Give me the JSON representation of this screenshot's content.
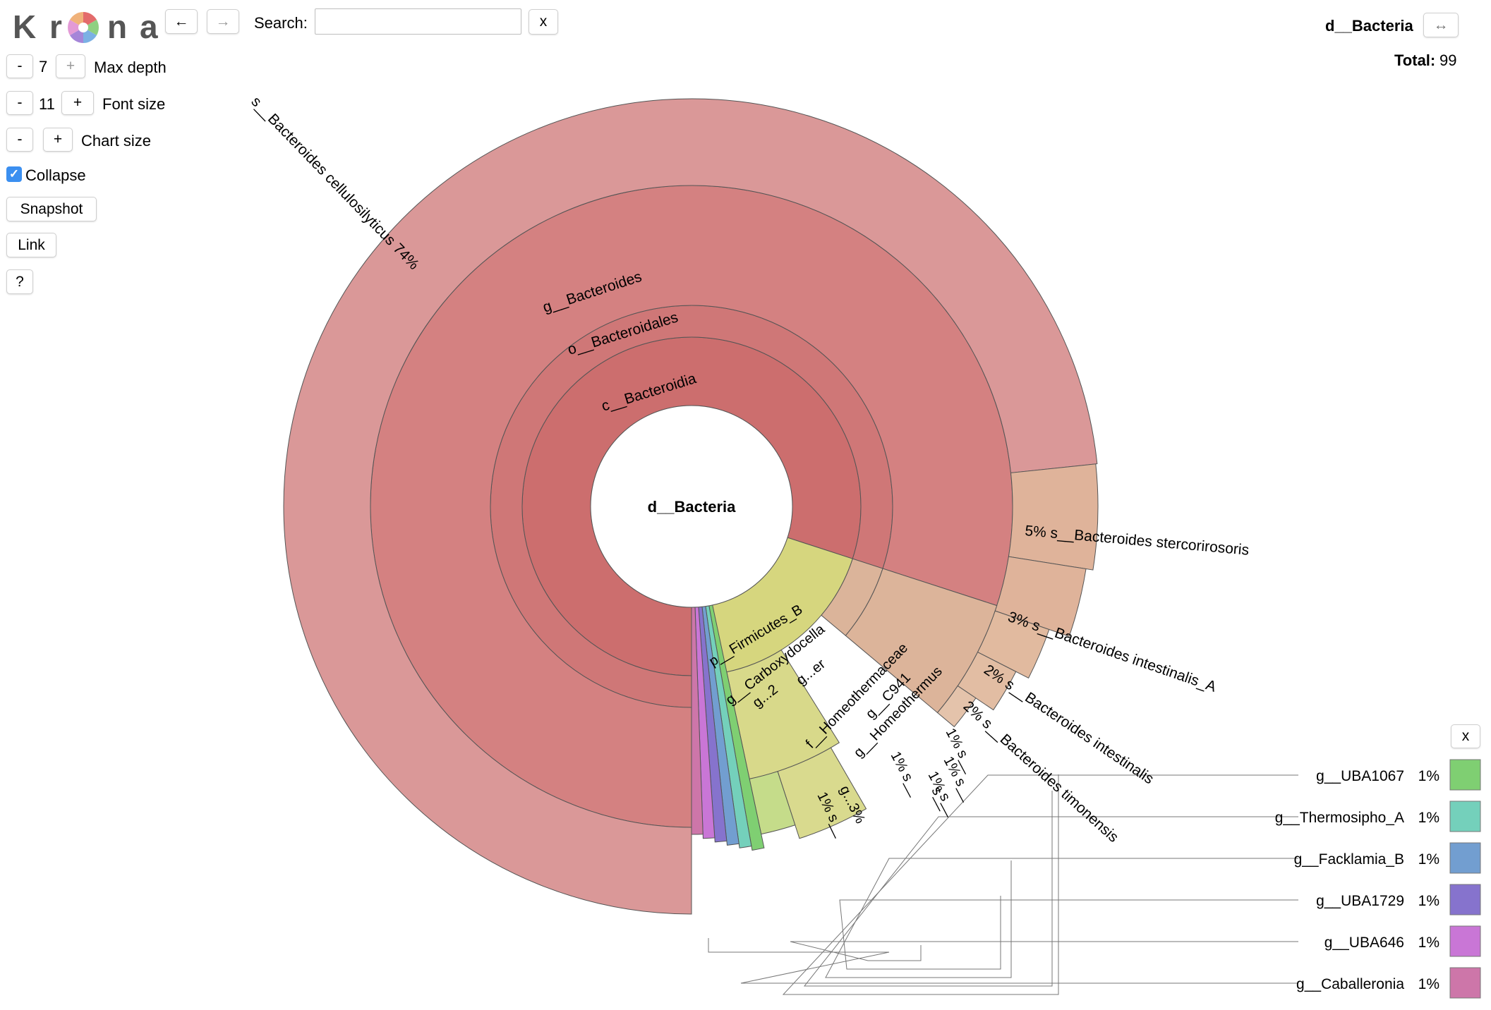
{
  "logo": {
    "letters": [
      "K",
      "r",
      "n",
      "a"
    ],
    "wheel_icon": "krona-wheel-icon"
  },
  "nav": {
    "back_icon": "←",
    "forward_icon": "→"
  },
  "search": {
    "label": "Search:",
    "value": "",
    "clear_label": "x"
  },
  "controls": {
    "max_depth": {
      "minus": "-",
      "value": "7",
      "plus": "+",
      "label": "Max depth"
    },
    "font_size": {
      "minus": "-",
      "value": "11",
      "plus": "+",
      "label": "Font size"
    },
    "chart_size": {
      "minus": "-",
      "plus": "+",
      "label": "Chart size"
    },
    "collapse": {
      "checked": true,
      "label": "Collapse",
      "check_glyph": "✓"
    },
    "snapshot_label": "Snapshot",
    "link_label": "Link",
    "help_label": "?"
  },
  "details": {
    "name": "d__Bacteria",
    "swap_icon": "↔",
    "total_label": "Total:",
    "total_value": "99"
  },
  "key": {
    "close_label": "x"
  },
  "colors": {
    "bacteroides_ring": "#cc6e6e",
    "bacteroides_species": "#da9898",
    "bacteroides_other_species": "#dfb39a",
    "firmicutes": "#d6d67e",
    "homeothermaceae": "#dcb49a",
    "uba1067": "#7fcf72",
    "thermosipho": "#74d0bb",
    "facklamia": "#729ed0",
    "uba1729": "#8673cd",
    "uba646": "#c976d6",
    "caballeronia": "#cd76a9"
  },
  "chart_data": {
    "type": "sunburst",
    "root": "d__Bacteria",
    "total": 99,
    "ring_labels": [
      "c__Bacteroidia",
      "o__Bacteroidales",
      "g__Bacteroides",
      "p__Firmicutes_B",
      "g__Carboxydocella",
      "g...2",
      "g...er",
      "f__Homeothermaceae",
      "g__C941",
      "g__Homeothermus",
      "g...3%"
    ],
    "species": [
      {
        "name": "s__Bacteroides cellulosilyticus",
        "percent": "74%"
      },
      {
        "name": "s__Bacteroides stercorirosoris",
        "percent": "5%"
      },
      {
        "name": "s__Bacteroides intestinalis_A",
        "percent": "3%"
      },
      {
        "name": "s__Bacteroides intestinalis",
        "percent": "2%"
      },
      {
        "name": "s__Bacteroides timonensis",
        "percent": "2%"
      }
    ],
    "small_labels": [
      {
        "name": "s__",
        "percent": "1%"
      },
      {
        "name": "s__",
        "percent": "1%"
      },
      {
        "name": "s__",
        "percent": "1%"
      },
      {
        "name": "s__",
        "percent": "1%"
      },
      {
        "name": "s__",
        "percent": ""
      },
      {
        "name": "s__",
        "percent": "1%"
      }
    ],
    "keys": [
      {
        "name": "g__UBA1067",
        "percent": "1%",
        "color": "#7fcf72"
      },
      {
        "name": "g__Thermosipho_A",
        "percent": "1%",
        "color": "#74d0bb"
      },
      {
        "name": "g__Facklamia_B",
        "percent": "1%",
        "color": "#729ed0"
      },
      {
        "name": "g__UBA1729",
        "percent": "1%",
        "color": "#8673cd"
      },
      {
        "name": "g__UBA646",
        "percent": "1%",
        "color": "#c976d6"
      },
      {
        "name": "g__Caballeronia",
        "percent": "1%",
        "color": "#cd76a9"
      }
    ]
  }
}
